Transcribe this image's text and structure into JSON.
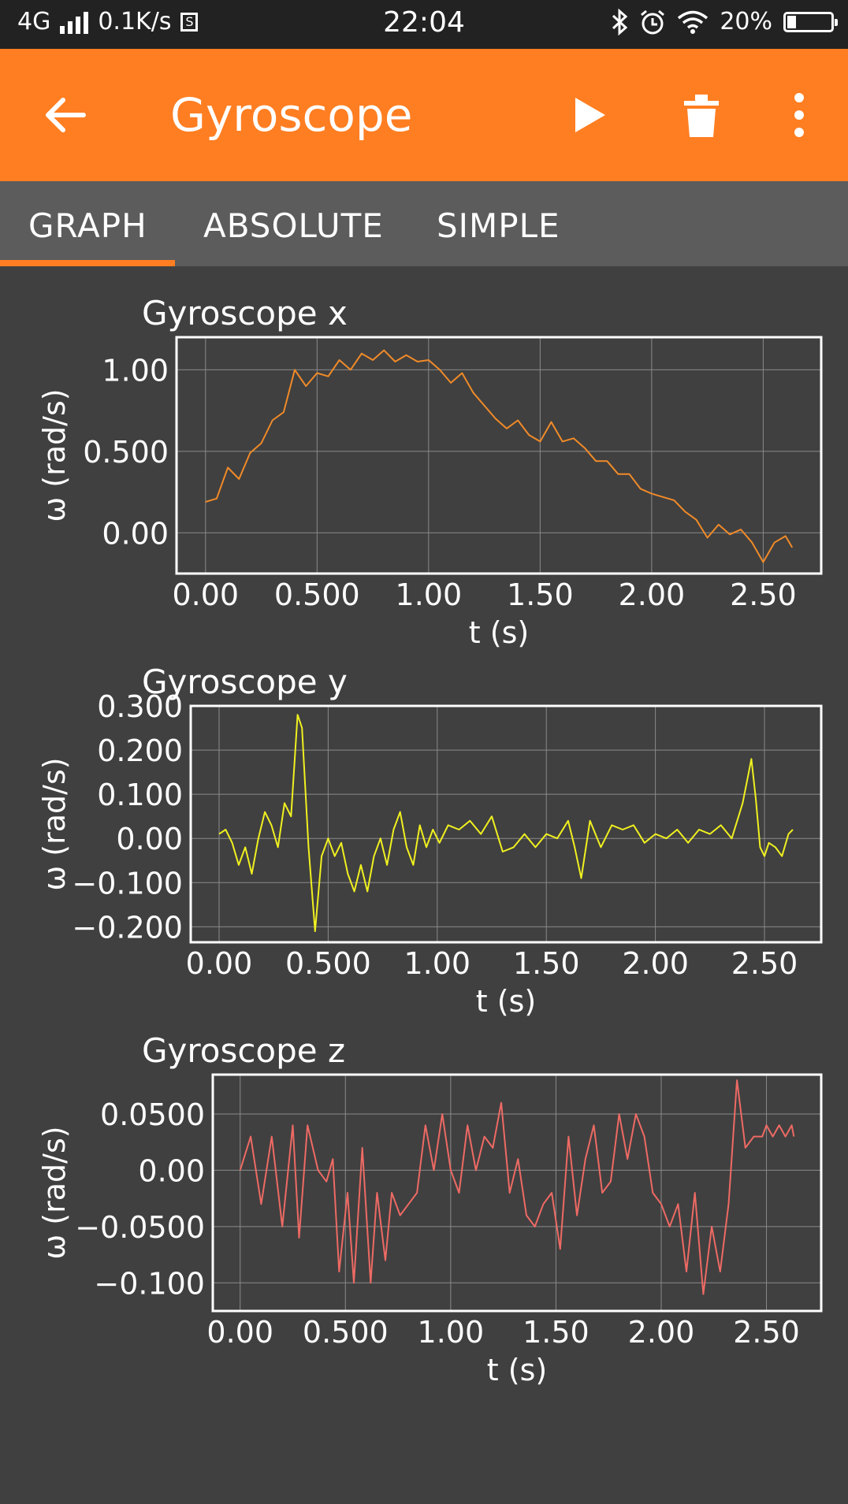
{
  "status_bar": {
    "network": "4G",
    "speed": "0.1K/s",
    "time": "22:04",
    "battery": "20%",
    "battery_level": 0.2
  },
  "app_bar": {
    "title": "Gyroscope",
    "icons": [
      "back-arrow-icon",
      "play-icon",
      "trash-icon",
      "more-vertical-icon"
    ]
  },
  "tabs": [
    {
      "label": "GRAPH",
      "selected": true
    },
    {
      "label": "ABSOLUTE",
      "selected": false
    },
    {
      "label": "SIMPLE",
      "selected": false
    }
  ],
  "colors": {
    "accent": "#ff7e22",
    "background": "#404040",
    "tab_bar": "#5c5c5c",
    "status_bar": "#222222"
  },
  "chart_data": [
    {
      "type": "line",
      "title": "Gyroscope x",
      "xlabel": "t (s)",
      "ylabel": "ω (rad/s)",
      "color": "#f08a28",
      "xlim": [
        -0.13,
        2.76
      ],
      "ylim": [
        -0.25,
        1.2
      ],
      "xticks": [
        0,
        0.5,
        1,
        1.5,
        2,
        2.5
      ],
      "xtick_labels": [
        "0.00",
        "0.500",
        "1.00",
        "1.50",
        "2.00",
        "2.50"
      ],
      "yticks": [
        0,
        0.5,
        1
      ],
      "ytick_labels": [
        "0.00",
        "0.500",
        "1.00"
      ],
      "x": [
        0.0,
        0.05,
        0.1,
        0.15,
        0.2,
        0.25,
        0.3,
        0.35,
        0.4,
        0.45,
        0.5,
        0.55,
        0.6,
        0.65,
        0.7,
        0.75,
        0.8,
        0.85,
        0.9,
        0.95,
        1.0,
        1.05,
        1.1,
        1.15,
        1.2,
        1.25,
        1.3,
        1.35,
        1.4,
        1.45,
        1.5,
        1.55,
        1.6,
        1.65,
        1.7,
        1.75,
        1.8,
        1.85,
        1.9,
        1.95,
        2.0,
        2.05,
        2.1,
        2.15,
        2.2,
        2.25,
        2.3,
        2.35,
        2.4,
        2.45,
        2.5,
        2.55,
        2.6,
        2.63
      ],
      "y": [
        0.19,
        0.21,
        0.4,
        0.33,
        0.49,
        0.55,
        0.69,
        0.74,
        1.0,
        0.9,
        0.98,
        0.96,
        1.06,
        1.0,
        1.1,
        1.06,
        1.12,
        1.05,
        1.09,
        1.05,
        1.06,
        1.0,
        0.92,
        0.98,
        0.86,
        0.78,
        0.7,
        0.64,
        0.69,
        0.6,
        0.56,
        0.68,
        0.56,
        0.58,
        0.52,
        0.44,
        0.44,
        0.36,
        0.36,
        0.27,
        0.24,
        0.22,
        0.2,
        0.13,
        0.08,
        -0.03,
        0.05,
        -0.01,
        0.02,
        -0.06,
        -0.18,
        -0.06,
        -0.02,
        -0.09
      ]
    },
    {
      "type": "line",
      "title": "Gyroscope y",
      "xlabel": "t (s)",
      "ylabel": "ω (rad/s)",
      "color": "#f0f020",
      "xlim": [
        -0.13,
        2.76
      ],
      "ylim": [
        -0.235,
        0.3
      ],
      "xticks": [
        0,
        0.5,
        1,
        1.5,
        2,
        2.5
      ],
      "xtick_labels": [
        "0.00",
        "0.500",
        "1.00",
        "1.50",
        "2.00",
        "2.50"
      ],
      "yticks": [
        -0.2,
        -0.1,
        0,
        0.1,
        0.2,
        0.3
      ],
      "ytick_labels": [
        "−0.200",
        "−0.100",
        "0.00",
        "0.100",
        "0.200",
        "0.300"
      ],
      "x": [
        0.0,
        0.03,
        0.06,
        0.09,
        0.12,
        0.15,
        0.18,
        0.21,
        0.24,
        0.27,
        0.3,
        0.33,
        0.36,
        0.38,
        0.41,
        0.44,
        0.47,
        0.5,
        0.53,
        0.56,
        0.59,
        0.62,
        0.65,
        0.68,
        0.71,
        0.74,
        0.77,
        0.8,
        0.83,
        0.86,
        0.89,
        0.92,
        0.95,
        0.98,
        1.01,
        1.05,
        1.1,
        1.15,
        1.2,
        1.25,
        1.3,
        1.35,
        1.4,
        1.45,
        1.5,
        1.55,
        1.6,
        1.63,
        1.66,
        1.7,
        1.75,
        1.8,
        1.85,
        1.9,
        1.95,
        2.0,
        2.05,
        2.1,
        2.15,
        2.2,
        2.25,
        2.3,
        2.35,
        2.4,
        2.42,
        2.44,
        2.46,
        2.48,
        2.5,
        2.52,
        2.55,
        2.58,
        2.61,
        2.63
      ],
      "y": [
        0.01,
        0.02,
        -0.01,
        -0.06,
        -0.02,
        -0.08,
        0.0,
        0.06,
        0.03,
        -0.02,
        0.08,
        0.05,
        0.28,
        0.25,
        -0.02,
        -0.21,
        -0.04,
        0.0,
        -0.04,
        -0.01,
        -0.08,
        -0.12,
        -0.06,
        -0.12,
        -0.04,
        0.0,
        -0.06,
        0.02,
        0.06,
        -0.02,
        -0.06,
        0.03,
        -0.02,
        0.02,
        -0.01,
        0.03,
        0.02,
        0.04,
        0.01,
        0.05,
        -0.03,
        -0.02,
        0.01,
        -0.02,
        0.01,
        0.0,
        0.04,
        -0.02,
        -0.09,
        0.04,
        -0.02,
        0.03,
        0.02,
        0.03,
        -0.01,
        0.01,
        0.0,
        0.02,
        -0.01,
        0.02,
        0.01,
        0.03,
        0.0,
        0.08,
        0.13,
        0.18,
        0.09,
        -0.02,
        -0.04,
        -0.01,
        -0.02,
        -0.04,
        0.01,
        0.02
      ]
    },
    {
      "type": "line",
      "title": "Gyroscope z",
      "xlabel": "t (s)",
      "ylabel": "ω (rad/s)",
      "color": "#ee6a64",
      "xlim": [
        -0.13,
        2.76
      ],
      "ylim": [
        -0.125,
        0.085
      ],
      "xticks": [
        0,
        0.5,
        1,
        1.5,
        2,
        2.5
      ],
      "xtick_labels": [
        "0.00",
        "0.500",
        "1.00",
        "1.50",
        "2.00",
        "2.50"
      ],
      "yticks": [
        -0.1,
        -0.05,
        0,
        0.05
      ],
      "ytick_labels": [
        "−0.100",
        "−0.0500",
        "0.00",
        "0.0500"
      ],
      "x": [
        0.0,
        0.05,
        0.1,
        0.15,
        0.2,
        0.25,
        0.28,
        0.32,
        0.37,
        0.41,
        0.44,
        0.47,
        0.51,
        0.54,
        0.58,
        0.62,
        0.65,
        0.69,
        0.72,
        0.76,
        0.8,
        0.84,
        0.88,
        0.92,
        0.96,
        1.0,
        1.04,
        1.08,
        1.12,
        1.16,
        1.2,
        1.24,
        1.28,
        1.32,
        1.36,
        1.4,
        1.44,
        1.48,
        1.52,
        1.56,
        1.6,
        1.64,
        1.68,
        1.72,
        1.76,
        1.8,
        1.84,
        1.88,
        1.92,
        1.96,
        2.0,
        2.04,
        2.08,
        2.12,
        2.16,
        2.2,
        2.24,
        2.28,
        2.32,
        2.36,
        2.4,
        2.44,
        2.48,
        2.5,
        2.53,
        2.56,
        2.59,
        2.62,
        2.63
      ],
      "y": [
        0.0,
        0.03,
        -0.03,
        0.03,
        -0.05,
        0.04,
        -0.06,
        0.04,
        0.0,
        -0.01,
        0.01,
        -0.09,
        -0.02,
        -0.1,
        0.02,
        -0.1,
        -0.02,
        -0.08,
        -0.02,
        -0.04,
        -0.03,
        -0.02,
        0.04,
        0.0,
        0.05,
        0.0,
        -0.02,
        0.04,
        0.0,
        0.03,
        0.02,
        0.06,
        -0.02,
        0.01,
        -0.04,
        -0.05,
        -0.03,
        -0.02,
        -0.07,
        0.03,
        -0.04,
        0.01,
        0.04,
        -0.02,
        -0.01,
        0.05,
        0.01,
        0.05,
        0.03,
        -0.02,
        -0.03,
        -0.05,
        -0.03,
        -0.09,
        -0.02,
        -0.11,
        -0.05,
        -0.09,
        -0.03,
        0.08,
        0.02,
        0.03,
        0.03,
        0.04,
        0.03,
        0.04,
        0.03,
        0.04,
        0.03
      ]
    }
  ]
}
